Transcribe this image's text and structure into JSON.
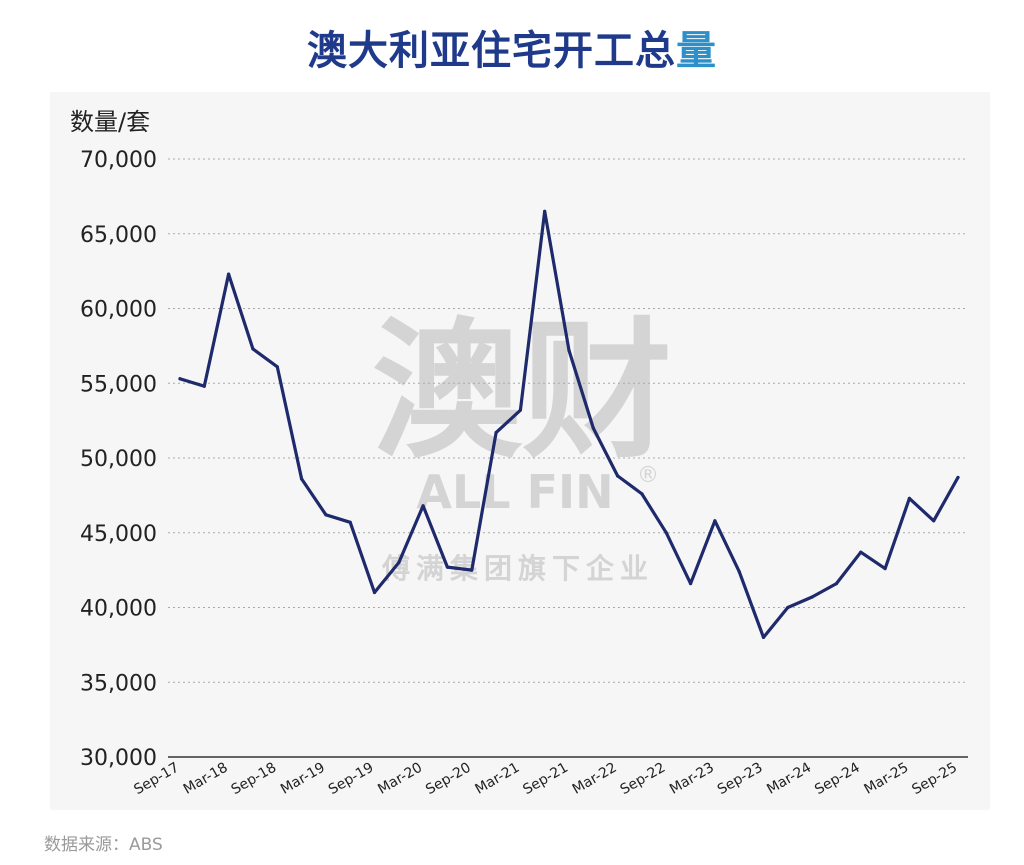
{
  "title": {
    "main": "澳大利亚住宅开工总",
    "accent": "量"
  },
  "source": "数据来源：ABS",
  "watermark": {
    "big": "澳财",
    "brand": "ALL FIN",
    "reg": "®",
    "sub": "傅满集团旗下企业"
  },
  "colors": {
    "line": "#1e2a6b",
    "title": "#1f3a8a",
    "title_accent": "#2f8fc9",
    "grid": "#a9a9a9",
    "watermark": "#d4d4d4"
  },
  "chart_data": {
    "type": "line",
    "ylabel": "数量/套",
    "xlabel": "",
    "ylim": [
      30000,
      70000
    ],
    "yticks": [
      30000,
      35000,
      40000,
      45000,
      50000,
      55000,
      60000,
      65000,
      70000
    ],
    "ytick_labels": [
      "30,000",
      "35,000",
      "40,000",
      "45,000",
      "50,000",
      "55,000",
      "60,000",
      "65,000",
      "70,000"
    ],
    "xtick_labels": [
      "Sep-17",
      "Mar-18",
      "Sep-18",
      "Mar-19",
      "Sep-19",
      "Mar-20",
      "Sep-20",
      "Mar-21",
      "Sep-21",
      "Mar-22",
      "Sep-22",
      "Mar-23",
      "Sep-23",
      "Mar-24",
      "Sep-24",
      "Mar-25",
      "Sep-25"
    ],
    "grid": "horizontal dotted",
    "series": [
      {
        "values": [
          55300,
          54800,
          62300,
          57300,
          56100,
          48600,
          46200,
          45700,
          41000,
          43000,
          46800,
          42700,
          42500,
          51700,
          53200,
          66500,
          57200,
          52000,
          48800,
          47600,
          45000,
          41600,
          45800,
          42400,
          38000,
          40000,
          40700,
          41600,
          43700,
          42600,
          47300,
          45800,
          48700
        ]
      }
    ]
  }
}
